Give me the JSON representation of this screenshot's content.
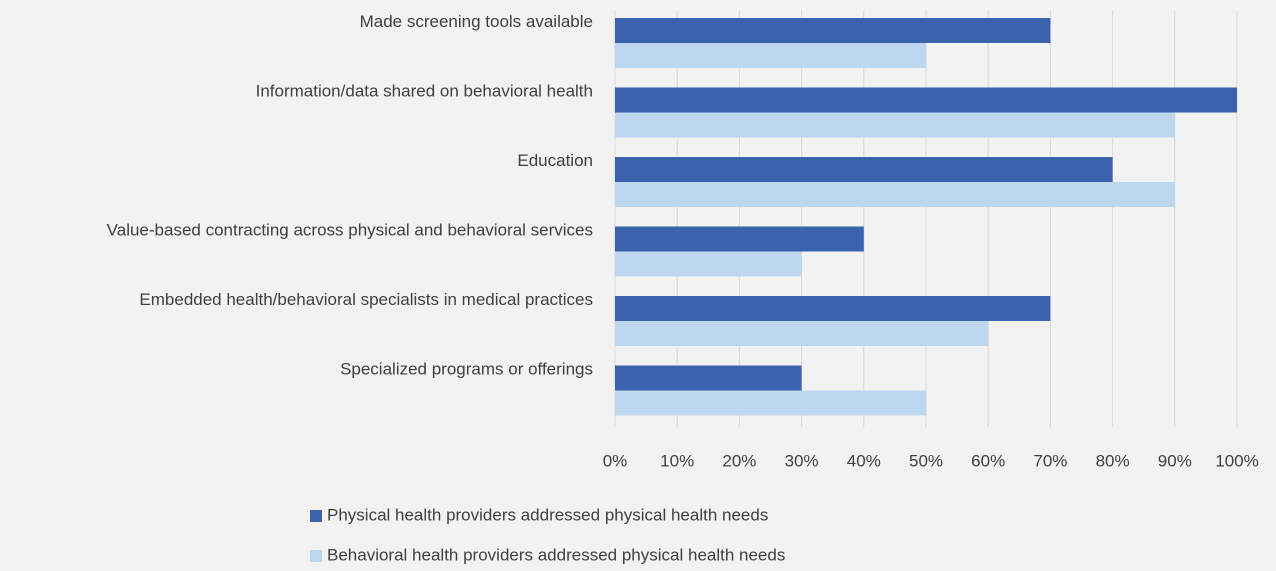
{
  "chart_data": {
    "type": "bar",
    "orientation": "horizontal",
    "categories": [
      "Made screening tools available",
      "Information/data shared on behavioral health",
      "Education",
      "Value-based contracting across physical and behavioral services",
      "Embedded health/behavioral specialists in medical practices",
      "Specialized programs or offerings"
    ],
    "series": [
      {
        "name": "Physical health providers addressed physical health needs",
        "color": "#3a62ad",
        "values": [
          70,
          100,
          80,
          40,
          70,
          30
        ]
      },
      {
        "name": "Behavioral health providers addressed physical health needs",
        "color": "#bdd7ee",
        "values": [
          50,
          90,
          90,
          30,
          60,
          50
        ]
      }
    ],
    "xlim": [
      0,
      100
    ],
    "xticks": [
      {
        "value": 0,
        "label": "0%"
      },
      {
        "value": 10,
        "label": "10%"
      },
      {
        "value": 20,
        "label": "20%"
      },
      {
        "value": 30,
        "label": "30%"
      },
      {
        "value": 40,
        "label": "40%"
      },
      {
        "value": 50,
        "label": "50%"
      },
      {
        "value": 60,
        "label": "60%"
      },
      {
        "value": 70,
        "label": "70%"
      },
      {
        "value": 80,
        "label": "80%"
      },
      {
        "value": 90,
        "label": "90%"
      },
      {
        "value": 100,
        "label": "100%"
      }
    ],
    "grid": true,
    "legend": "bottom"
  }
}
